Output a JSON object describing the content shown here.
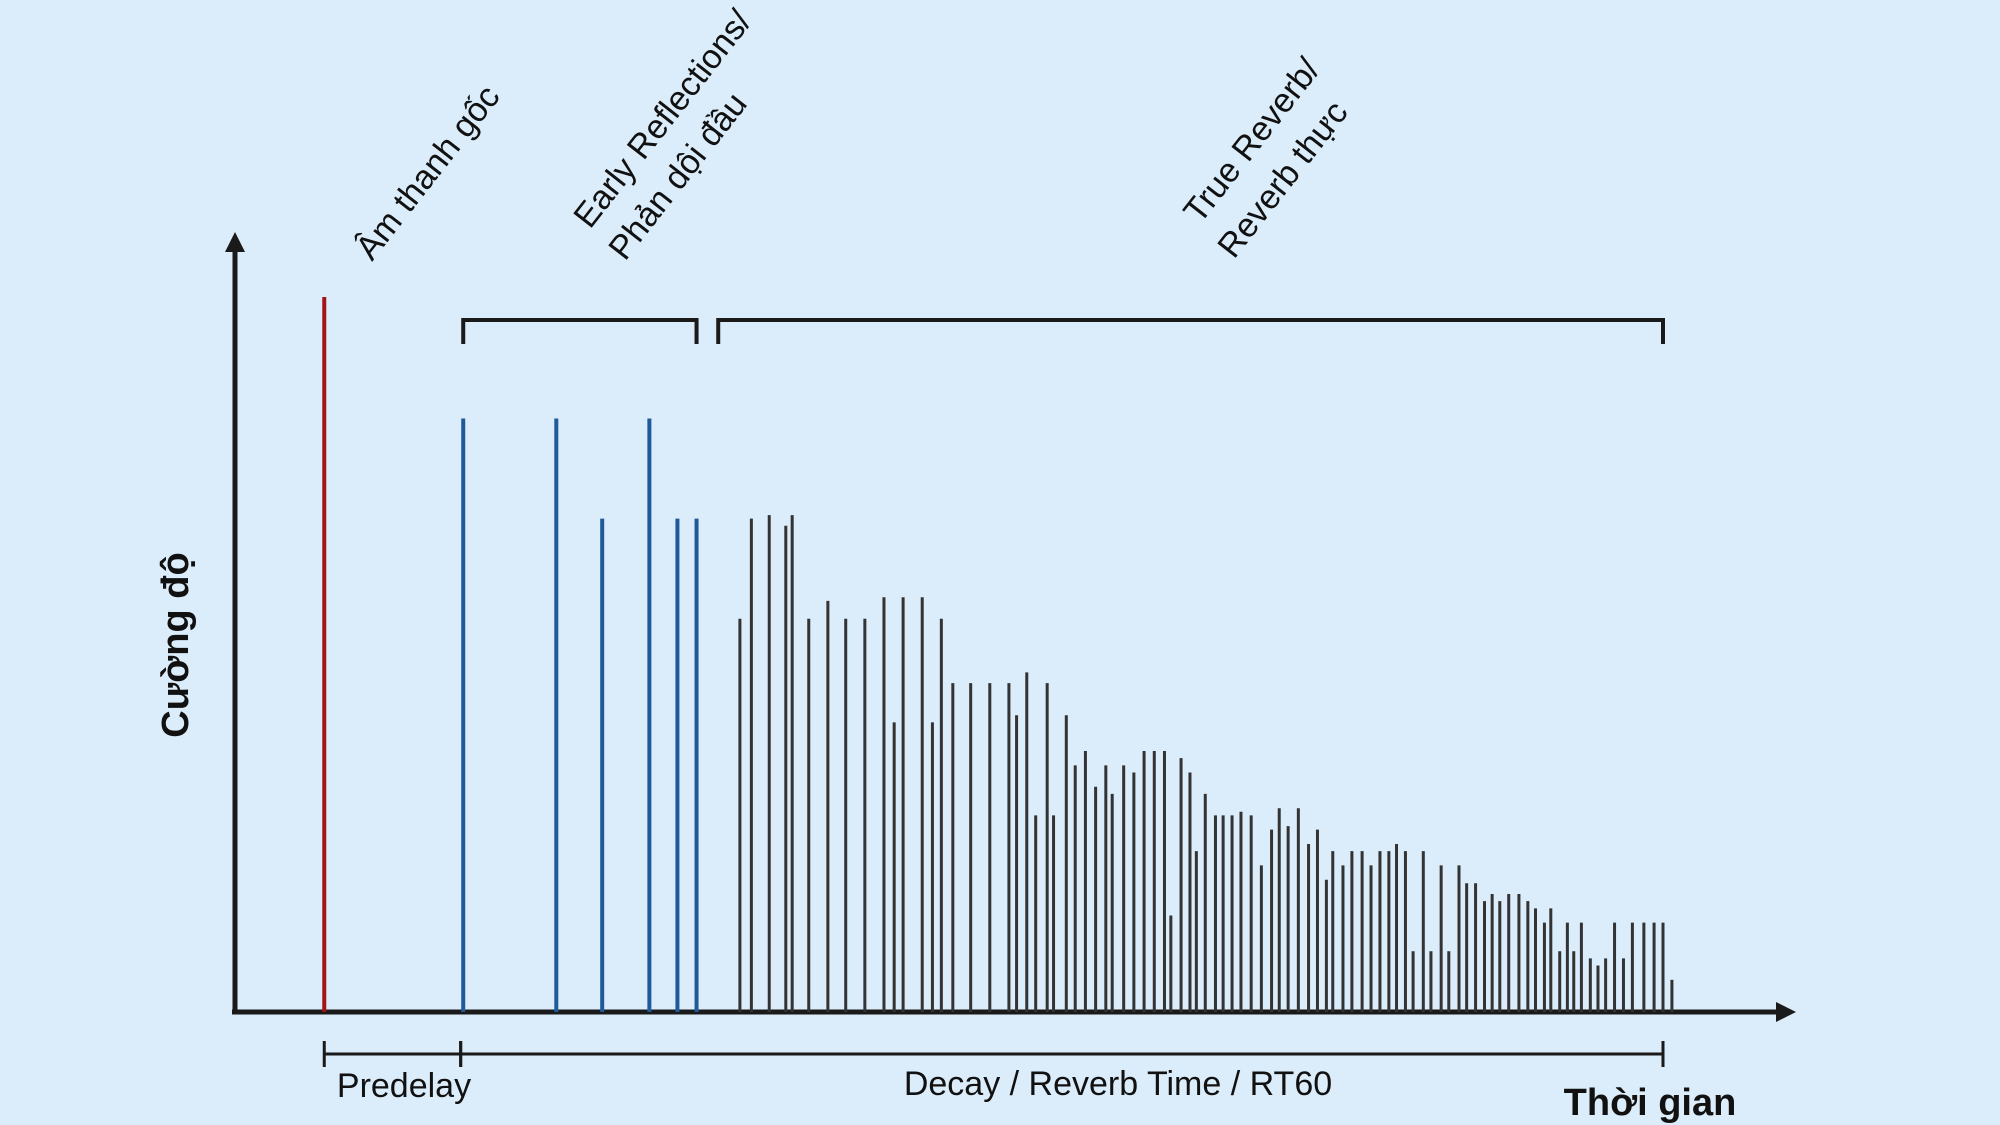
{
  "diagram": {
    "y_axis_label": "Cường độ",
    "x_axis_label": "Thời gian",
    "label_original": "Âm thanh gốc",
    "label_early_line1": "Early Reflections/",
    "label_early_line2": "Phản dội đầu",
    "label_true_line1": "True Reverb/",
    "label_true_line2": "Reverb thực",
    "predelay_label": "Predelay",
    "decay_label": "Decay / Reverb Time / RT60"
  },
  "colors": {
    "background": "#dbecfa",
    "axis": "#1a1a1a",
    "original": "#a31515",
    "early": "#1f5a9a",
    "reverb": "#333333"
  },
  "chart_data": {
    "type": "bar",
    "y_unit": "relative intensity (0 = baseline, 1 = original sound)",
    "original": {
      "t": 0.07,
      "amp": 1.0
    },
    "early_reflections": [
      {
        "t": 0.179,
        "amp": 0.83
      },
      {
        "t": 0.252,
        "amp": 0.83
      },
      {
        "t": 0.288,
        "amp": 0.69
      },
      {
        "t": 0.325,
        "amp": 0.83
      },
      {
        "t": 0.347,
        "amp": 0.69
      },
      {
        "t": 0.362,
        "amp": 0.69
      }
    ],
    "true_reverb": [
      {
        "t": 0.396,
        "amp": 0.55
      },
      {
        "t": 0.405,
        "amp": 0.69
      },
      {
        "t": 0.419,
        "amp": 0.695
      },
      {
        "t": 0.432,
        "amp": 0.68
      },
      {
        "t": 0.437,
        "amp": 0.695
      },
      {
        "t": 0.45,
        "amp": 0.55
      },
      {
        "t": 0.465,
        "amp": 0.575
      },
      {
        "t": 0.479,
        "amp": 0.55
      },
      {
        "t": 0.494,
        "amp": 0.55
      },
      {
        "t": 0.509,
        "amp": 0.58
      },
      {
        "t": 0.517,
        "amp": 0.405
      },
      {
        "t": 0.524,
        "amp": 0.58
      },
      {
        "t": 0.539,
        "amp": 0.58
      },
      {
        "t": 0.547,
        "amp": 0.405
      },
      {
        "t": 0.554,
        "amp": 0.55
      },
      {
        "t": 0.563,
        "amp": 0.46
      },
      {
        "t": 0.577,
        "amp": 0.46
      },
      {
        "t": 0.592,
        "amp": 0.46
      },
      {
        "t": 0.607,
        "amp": 0.46
      },
      {
        "t": 0.613,
        "amp": 0.415
      },
      {
        "t": 0.621,
        "amp": 0.475
      },
      {
        "t": 0.628,
        "amp": 0.275
      },
      {
        "t": 0.637,
        "amp": 0.46
      },
      {
        "t": 0.642,
        "amp": 0.275
      },
      {
        "t": 0.652,
        "amp": 0.415
      },
      {
        "t": 0.659,
        "amp": 0.345
      },
      {
        "t": 0.667,
        "amp": 0.365
      },
      {
        "t": 0.675,
        "amp": 0.315
      },
      {
        "t": 0.683,
        "amp": 0.345
      },
      {
        "t": 0.688,
        "amp": 0.305
      },
      {
        "t": 0.697,
        "amp": 0.345
      },
      {
        "t": 0.705,
        "amp": 0.335
      },
      {
        "t": 0.713,
        "amp": 0.365
      },
      {
        "t": 0.721,
        "amp": 0.365
      },
      {
        "t": 0.729,
        "amp": 0.365
      },
      {
        "t": 0.734,
        "amp": 0.135
      },
      {
        "t": 0.742,
        "amp": 0.355
      },
      {
        "t": 0.749,
        "amp": 0.335
      },
      {
        "t": 0.754,
        "amp": 0.225
      },
      {
        "t": 0.761,
        "amp": 0.305
      },
      {
        "t": 0.769,
        "amp": 0.275
      },
      {
        "t": 0.775,
        "amp": 0.275
      },
      {
        "t": 0.782,
        "amp": 0.275
      },
      {
        "t": 0.789,
        "amp": 0.28
      },
      {
        "t": 0.797,
        "amp": 0.275
      },
      {
        "t": 0.805,
        "amp": 0.205
      },
      {
        "t": 0.813,
        "amp": 0.255
      },
      {
        "t": 0.819,
        "amp": 0.285
      },
      {
        "t": 0.826,
        "amp": 0.26
      },
      {
        "t": 0.834,
        "amp": 0.285
      },
      {
        "t": 0.842,
        "amp": 0.235
      },
      {
        "t": 0.849,
        "amp": 0.255
      },
      {
        "t": 0.856,
        "amp": 0.185
      },
      {
        "t": 0.861,
        "amp": 0.225
      },
      {
        "t": 0.869,
        "amp": 0.205
      },
      {
        "t": 0.876,
        "amp": 0.225
      },
      {
        "t": 0.884,
        "amp": 0.225
      },
      {
        "t": 0.891,
        "amp": 0.205
      },
      {
        "t": 0.898,
        "amp": 0.225
      },
      {
        "t": 0.905,
        "amp": 0.225
      },
      {
        "t": 0.911,
        "amp": 0.235
      },
      {
        "t": 0.918,
        "amp": 0.225
      },
      {
        "t": 0.924,
        "amp": 0.085
      },
      {
        "t": 0.932,
        "amp": 0.225
      },
      {
        "t": 0.938,
        "amp": 0.085
      },
      {
        "t": 0.946,
        "amp": 0.205
      },
      {
        "t": 0.952,
        "amp": 0.085
      },
      {
        "t": 0.96,
        "amp": 0.205
      },
      {
        "t": 0.966,
        "amp": 0.18
      },
      {
        "t": 0.973,
        "amp": 0.18
      },
      {
        "t": 0.98,
        "amp": 0.155
      },
      {
        "t": 0.986,
        "amp": 0.165
      },
      {
        "t": 0.992,
        "amp": 0.155
      },
      {
        "t": 0.999,
        "amp": 0.165
      },
      {
        "t": 1.007,
        "amp": 0.165
      },
      {
        "t": 1.014,
        "amp": 0.155
      },
      {
        "t": 1.02,
        "amp": 0.145
      },
      {
        "t": 1.027,
        "amp": 0.125
      },
      {
        "t": 1.032,
        "amp": 0.145
      },
      {
        "t": 1.039,
        "amp": 0.085
      },
      {
        "t": 1.045,
        "amp": 0.125
      },
      {
        "t": 1.05,
        "amp": 0.085
      },
      {
        "t": 1.056,
        "amp": 0.125
      },
      {
        "t": 1.063,
        "amp": 0.075
      },
      {
        "t": 1.069,
        "amp": 0.065
      },
      {
        "t": 1.075,
        "amp": 0.075
      },
      {
        "t": 1.082,
        "amp": 0.125
      },
      {
        "t": 1.089,
        "amp": 0.075
      },
      {
        "t": 1.096,
        "amp": 0.125
      },
      {
        "t": 1.105,
        "amp": 0.125
      },
      {
        "t": 1.113,
        "amp": 0.125
      },
      {
        "t": 1.12,
        "amp": 0.125
      },
      {
        "t": 1.127,
        "amp": 0.045
      }
    ],
    "x_range": [
      0,
      1.15
    ],
    "y_range": [
      0,
      1.2
    ],
    "brackets": {
      "early": [
        0.179,
        0.362
      ],
      "true_reverb": [
        0.379,
        1.12
      ],
      "predelay": [
        0.07,
        0.177
      ],
      "decay": [
        0.177,
        1.12
      ]
    },
    "grid": false,
    "legend": "none"
  }
}
